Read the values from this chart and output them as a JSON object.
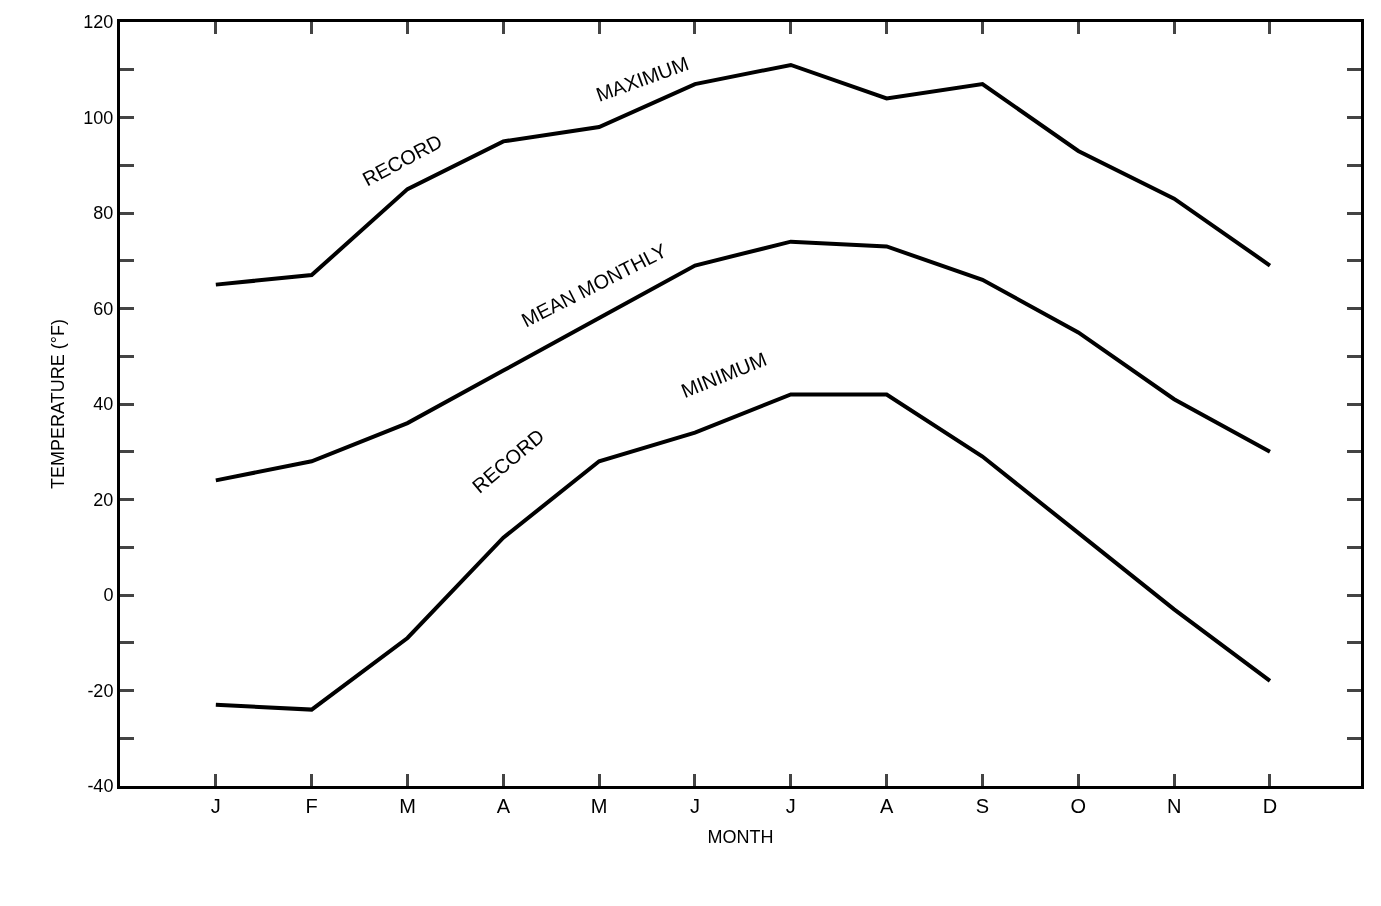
{
  "chart_data": {
    "type": "line",
    "xlabel": "MONTH",
    "ylabel": "TEMPERATURE (°F)",
    "categories": [
      "J",
      "F",
      "M",
      "A",
      "M",
      "J",
      "J",
      "A",
      "S",
      "O",
      "N",
      "D"
    ],
    "series": [
      {
        "color": "#000000",
        "values": [
          65,
          67,
          85,
          95,
          98,
          107,
          111,
          104,
          107,
          93,
          83,
          69
        ]
      },
      {
        "color": "#000000",
        "values": [
          24,
          28,
          36,
          47,
          58,
          69,
          74,
          73,
          66,
          55,
          41,
          30
        ]
      },
      {
        "color": "#000000",
        "values": [
          -23,
          -24,
          -9,
          12,
          28,
          34,
          42,
          42,
          29,
          13,
          -3,
          -18
        ]
      }
    ],
    "ylim": [
      -40,
      120
    ],
    "yticks": [
      -40,
      {
        "value": -30,
        "label": null
      },
      -20,
      {
        "value": -10,
        "label": null
      },
      0,
      {
        "value": 10,
        "label": null
      },
      20,
      {
        "value": 30,
        "label": null
      },
      40,
      {
        "value": 50,
        "label": null
      },
      60,
      {
        "value": 70,
        "label": null
      },
      80,
      {
        "value": 90,
        "label": null
      },
      100,
      {
        "value": 110,
        "label": null
      },
      120
    ],
    "annotations": [
      "RECORD",
      "MAXIMUM",
      "MEAN MONTHLY",
      "RECORD",
      "MINIMUM"
    ],
    "marker": "none",
    "line_style": "solid"
  }
}
